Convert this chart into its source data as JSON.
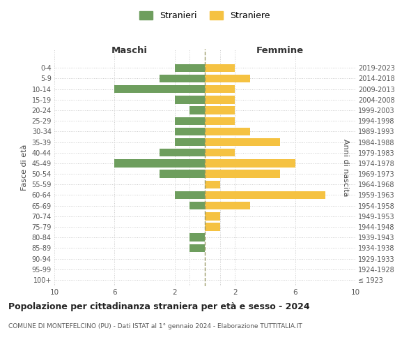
{
  "age_groups": [
    "100+",
    "95-99",
    "90-94",
    "85-89",
    "80-84",
    "75-79",
    "70-74",
    "65-69",
    "60-64",
    "55-59",
    "50-54",
    "45-49",
    "40-44",
    "35-39",
    "30-34",
    "25-29",
    "20-24",
    "15-19",
    "10-14",
    "5-9",
    "0-4"
  ],
  "birth_years": [
    "≤ 1923",
    "1924-1928",
    "1929-1933",
    "1934-1938",
    "1939-1943",
    "1944-1948",
    "1949-1953",
    "1954-1958",
    "1959-1963",
    "1964-1968",
    "1969-1973",
    "1974-1978",
    "1979-1983",
    "1984-1988",
    "1989-1993",
    "1994-1998",
    "1999-2003",
    "2004-2008",
    "2009-2013",
    "2014-2018",
    "2019-2023"
  ],
  "maschi": [
    0,
    0,
    0,
    1,
    1,
    0,
    0,
    1,
    2,
    0,
    3,
    6,
    3,
    2,
    2,
    2,
    1,
    2,
    6,
    3,
    2
  ],
  "femmine": [
    0,
    0,
    0,
    0,
    0,
    1,
    1,
    3,
    8,
    1,
    5,
    6,
    2,
    5,
    3,
    2,
    2,
    2,
    2,
    3,
    2
  ],
  "male_color": "#6e9e5e",
  "female_color": "#f5c242",
  "title": "Popolazione per cittadinanza straniera per età e sesso - 2024",
  "subtitle": "COMUNE DI MONTEFELCINO (PU) - Dati ISTAT al 1° gennaio 2024 - Elaborazione TUTTITALIA.IT",
  "legend_male": "Stranieri",
  "legend_female": "Straniere",
  "xlabel_left": "Maschi",
  "xlabel_right": "Femmine",
  "ylabel_left": "Fasce di età",
  "ylabel_right": "Anni di nascita",
  "xlim": 10,
  "bg_color": "#ffffff",
  "grid_color": "#cccccc",
  "dashed_line_color": "#999966"
}
